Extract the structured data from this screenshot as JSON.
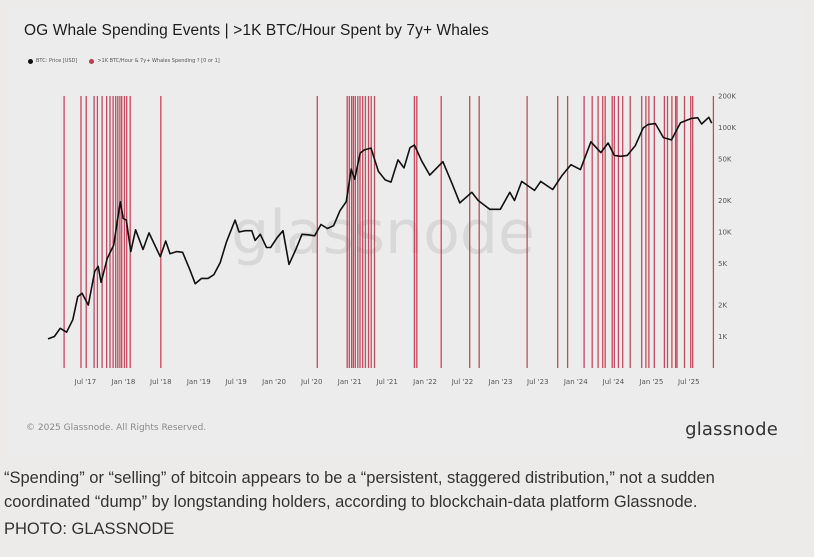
{
  "title": "OG Whale Spending Events | >1K BTC/Hour Spent by 7y+ Whales",
  "copyright": "© 2025 Glassnode. All Rights Reserved.",
  "brand": "glassnode",
  "watermark": "glassnode",
  "caption": "“Spending” or “selling” of bitcoin appears to be a “persistent, staggered distribution,” not a sudden coordinated “dump” by longstanding holders, according to blockchain-data platform Glassnode.",
  "photo_credit": "PHOTO: GLASSNODE",
  "colors": {
    "price_line": "#111111",
    "events": "#c0394e",
    "background": "#ececec"
  },
  "chart_data": {
    "type": "line",
    "y_scale": "log",
    "ylim": [
      500,
      200000
    ],
    "y_ticks": [
      {
        "value": 1000,
        "label": "1K"
      },
      {
        "value": 2000,
        "label": "2K"
      },
      {
        "value": 5000,
        "label": "5K"
      },
      {
        "value": 10000,
        "label": "10K"
      },
      {
        "value": 20000,
        "label": "20K"
      },
      {
        "value": 50000,
        "label": "50K"
      },
      {
        "value": 100000,
        "label": "100K"
      },
      {
        "value": 200000,
        "label": "200K"
      }
    ],
    "xlim": [
      "2017-01-01",
      "2025-10-31"
    ],
    "x_ticks": [
      {
        "date": "2017-07-01",
        "label": "Jul '17"
      },
      {
        "date": "2018-01-01",
        "label": "Jan '18"
      },
      {
        "date": "2018-07-01",
        "label": "Jul '18"
      },
      {
        "date": "2019-01-01",
        "label": "Jan '19"
      },
      {
        "date": "2019-07-01",
        "label": "Jul '19"
      },
      {
        "date": "2020-01-01",
        "label": "Jan '20"
      },
      {
        "date": "2020-07-01",
        "label": "Jul '20"
      },
      {
        "date": "2021-01-01",
        "label": "Jan '21"
      },
      {
        "date": "2021-07-01",
        "label": "Jul '21"
      },
      {
        "date": "2022-01-01",
        "label": "Jan '22"
      },
      {
        "date": "2022-07-01",
        "label": "Jul '22"
      },
      {
        "date": "2023-01-01",
        "label": "Jan '23"
      },
      {
        "date": "2023-07-01",
        "label": "Jul '23"
      },
      {
        "date": "2024-01-01",
        "label": "Jan '24"
      },
      {
        "date": "2024-07-01",
        "label": "Jul '24"
      },
      {
        "date": "2025-01-01",
        "label": "Jan '25"
      },
      {
        "date": "2025-07-01",
        "label": "Jul '25"
      }
    ],
    "series": [
      {
        "name": "BTC: Price [USD]",
        "type": "line",
        "points": [
          [
            "2017-01-01",
            950
          ],
          [
            "2017-02-01",
            1000
          ],
          [
            "2017-03-01",
            1200
          ],
          [
            "2017-04-01",
            1100
          ],
          [
            "2017-05-01",
            1450
          ],
          [
            "2017-05-25",
            2400
          ],
          [
            "2017-06-15",
            2600
          ],
          [
            "2017-07-15",
            2000
          ],
          [
            "2017-08-15",
            4200
          ],
          [
            "2017-09-01",
            4700
          ],
          [
            "2017-09-15",
            3300
          ],
          [
            "2017-10-15",
            5600
          ],
          [
            "2017-11-15",
            7500
          ],
          [
            "2017-12-17",
            19500
          ],
          [
            "2017-12-31",
            13500
          ],
          [
            "2018-01-15",
            13000
          ],
          [
            "2018-02-06",
            6500
          ],
          [
            "2018-03-01",
            10500
          ],
          [
            "2018-04-06",
            6800
          ],
          [
            "2018-05-05",
            9800
          ],
          [
            "2018-06-29",
            5800
          ],
          [
            "2018-07-25",
            8200
          ],
          [
            "2018-08-15",
            6200
          ],
          [
            "2018-09-15",
            6500
          ],
          [
            "2018-10-15",
            6400
          ],
          [
            "2018-11-20",
            4300
          ],
          [
            "2018-12-15",
            3200
          ],
          [
            "2019-01-15",
            3600
          ],
          [
            "2019-02-15",
            3600
          ],
          [
            "2019-03-15",
            3900
          ],
          [
            "2019-04-15",
            5100
          ],
          [
            "2019-05-15",
            8000
          ],
          [
            "2019-06-26",
            13000
          ],
          [
            "2019-07-15",
            10000
          ],
          [
            "2019-08-15",
            10300
          ],
          [
            "2019-09-15",
            10300
          ],
          [
            "2019-10-01",
            8300
          ],
          [
            "2019-10-26",
            9500
          ],
          [
            "2019-11-25",
            7100
          ],
          [
            "2019-12-15",
            7100
          ],
          [
            "2020-01-15",
            8800
          ],
          [
            "2020-02-13",
            10300
          ],
          [
            "2020-03-13",
            4900
          ],
          [
            "2020-04-15",
            6800
          ],
          [
            "2020-05-15",
            9500
          ],
          [
            "2020-06-15",
            9400
          ],
          [
            "2020-07-15",
            9200
          ],
          [
            "2020-08-15",
            11800
          ],
          [
            "2020-09-15",
            10800
          ],
          [
            "2020-10-15",
            11500
          ],
          [
            "2020-11-15",
            16000
          ],
          [
            "2020-12-15",
            19500
          ],
          [
            "2021-01-08",
            40000
          ],
          [
            "2021-01-25",
            32000
          ],
          [
            "2021-02-21",
            57000
          ],
          [
            "2021-03-13",
            61000
          ],
          [
            "2021-04-14",
            63500
          ],
          [
            "2021-05-20",
            38000
          ],
          [
            "2021-06-22",
            31500
          ],
          [
            "2021-07-20",
            30000
          ],
          [
            "2021-08-23",
            49000
          ],
          [
            "2021-09-21",
            41000
          ],
          [
            "2021-10-20",
            64000
          ],
          [
            "2021-11-10",
            68000
          ],
          [
            "2021-12-15",
            48000
          ],
          [
            "2022-01-24",
            35000
          ],
          [
            "2022-03-28",
            47000
          ],
          [
            "2022-05-12",
            29000
          ],
          [
            "2022-06-18",
            19000
          ],
          [
            "2022-08-15",
            24000
          ],
          [
            "2022-09-15",
            20000
          ],
          [
            "2022-11-10",
            16500
          ],
          [
            "2022-12-31",
            16500
          ],
          [
            "2023-02-15",
            24000
          ],
          [
            "2023-03-10",
            20000
          ],
          [
            "2023-04-14",
            30500
          ],
          [
            "2023-06-15",
            25000
          ],
          [
            "2023-07-15",
            30500
          ],
          [
            "2023-09-11",
            25500
          ],
          [
            "2023-10-25",
            34500
          ],
          [
            "2023-12-08",
            44000
          ],
          [
            "2024-01-23",
            39500
          ],
          [
            "2024-03-14",
            73000
          ],
          [
            "2024-05-01",
            57500
          ],
          [
            "2024-06-05",
            71000
          ],
          [
            "2024-07-05",
            54000
          ],
          [
            "2024-08-05",
            53000
          ],
          [
            "2024-09-06",
            54000
          ],
          [
            "2024-10-15",
            67000
          ],
          [
            "2024-11-22",
            99000
          ],
          [
            "2024-12-17",
            107000
          ],
          [
            "2025-01-20",
            109000
          ],
          [
            "2025-02-28",
            80000
          ],
          [
            "2025-04-08",
            76000
          ],
          [
            "2025-05-22",
            111000
          ],
          [
            "2025-07-14",
            122000
          ],
          [
            "2025-08-13",
            124000
          ],
          [
            "2025-09-01",
            108000
          ],
          [
            "2025-10-06",
            125000
          ],
          [
            "2025-10-20",
            110000
          ]
        ]
      },
      {
        "name": ">1K BTC/Hour & 7y+ Whales Spending ? [0 or 1]",
        "type": "event",
        "dates": [
          "2017-03-20",
          "2017-06-10",
          "2017-07-05",
          "2017-08-12",
          "2017-08-28",
          "2017-09-20",
          "2017-10-12",
          "2017-10-28",
          "2017-11-12",
          "2017-11-25",
          "2017-12-05",
          "2017-12-15",
          "2017-12-24",
          "2018-01-06",
          "2018-01-17",
          "2018-02-03",
          "2018-07-01",
          "2020-07-28",
          "2020-12-20",
          "2020-12-30",
          "2021-01-10",
          "2021-01-19",
          "2021-01-28",
          "2021-02-09",
          "2021-02-20",
          "2021-03-05",
          "2021-03-18",
          "2021-04-02",
          "2021-04-15",
          "2021-05-01",
          "2021-11-10",
          "2021-11-22",
          "2022-03-20",
          "2022-08-05",
          "2022-09-20",
          "2023-05-10",
          "2023-10-05",
          "2023-11-22",
          "2024-02-10",
          "2024-03-20",
          "2024-04-18",
          "2024-05-10",
          "2024-05-22",
          "2024-06-25",
          "2024-07-05",
          "2024-07-25",
          "2024-08-15",
          "2024-09-20",
          "2024-11-15",
          "2024-12-05",
          "2024-12-20",
          "2025-01-15",
          "2025-03-05",
          "2025-03-20",
          "2025-04-10",
          "2025-04-28",
          "2025-05-05",
          "2025-06-10",
          "2025-07-10",
          "2025-07-20",
          "2025-10-28"
        ]
      }
    ]
  }
}
